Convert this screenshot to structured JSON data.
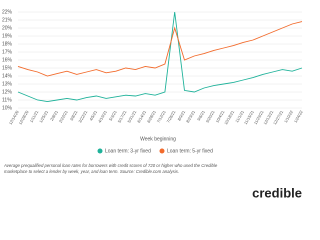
{
  "chart_data": {
    "type": "line",
    "x_label": "Week beginning",
    "categories": [
      "12/14/20",
      "12/28/20",
      "1/11/21",
      "1/25/21",
      "2/8/21",
      "2/22/21",
      "3/8/21",
      "3/22/21",
      "4/5/21",
      "4/19/21",
      "5/3/21",
      "5/17/21",
      "5/31/21",
      "6/14/21",
      "6/28/21",
      "7/12/21",
      "7/26/21",
      "8/9/21",
      "8/23/21",
      "9/6/21",
      "9/20/21",
      "10/4/21",
      "10/18/21",
      "11/1/21",
      "11/15/21",
      "11/29/21",
      "12/13/21",
      "12/27/21",
      "1/10/22",
      "1/24/22"
    ],
    "series": [
      {
        "name": "Loan term: 3-yr fixed",
        "color": "#1fb29a",
        "values": [
          12.0,
          11.5,
          11.0,
          10.8,
          11.0,
          11.2,
          11.0,
          11.3,
          11.5,
          11.2,
          11.4,
          11.6,
          11.5,
          11.8,
          11.6,
          12.0,
          22.0,
          12.2,
          12.0,
          12.5,
          12.8,
          13.0,
          13.2,
          13.5,
          13.8,
          14.2,
          14.5,
          14.8,
          14.6,
          15.0
        ]
      },
      {
        "name": "Loan term: 5-yr fixed",
        "color": "#f26b2c",
        "values": [
          15.2,
          14.8,
          14.5,
          14.0,
          14.3,
          14.6,
          14.2,
          14.5,
          14.8,
          14.4,
          14.6,
          15.0,
          14.8,
          15.2,
          15.0,
          15.5,
          20.0,
          16.0,
          16.5,
          16.8,
          17.2,
          17.5,
          17.8,
          18.2,
          18.5,
          19.0,
          19.5,
          20.0,
          20.5,
          20.8
        ]
      }
    ],
    "ylim": [
      10,
      22
    ],
    "yticks": [
      {
        "value": 10,
        "label": "10%"
      },
      {
        "value": 11,
        "label": "11%"
      },
      {
        "value": 12,
        "label": "12%"
      },
      {
        "value": 13,
        "label": "13%"
      },
      {
        "value": 14,
        "label": "14%"
      },
      {
        "value": 15,
        "label": "15%"
      },
      {
        "value": 16,
        "label": "16%"
      },
      {
        "value": 17,
        "label": "17%"
      },
      {
        "value": 18,
        "label": "18%"
      },
      {
        "value": 19,
        "label": "19%"
      },
      {
        "value": 20,
        "label": "20%"
      },
      {
        "value": 21,
        "label": "21%"
      },
      {
        "value": 22,
        "label": "22%"
      }
    ],
    "grid": true,
    "caption": "Average prequalified personal loan rates for borrowers with credit scores of 720 or higher who used the Credible marketplace to select a lender by week, year, and loan term. Source: Credible.com analysis.",
    "logo": "credible"
  }
}
